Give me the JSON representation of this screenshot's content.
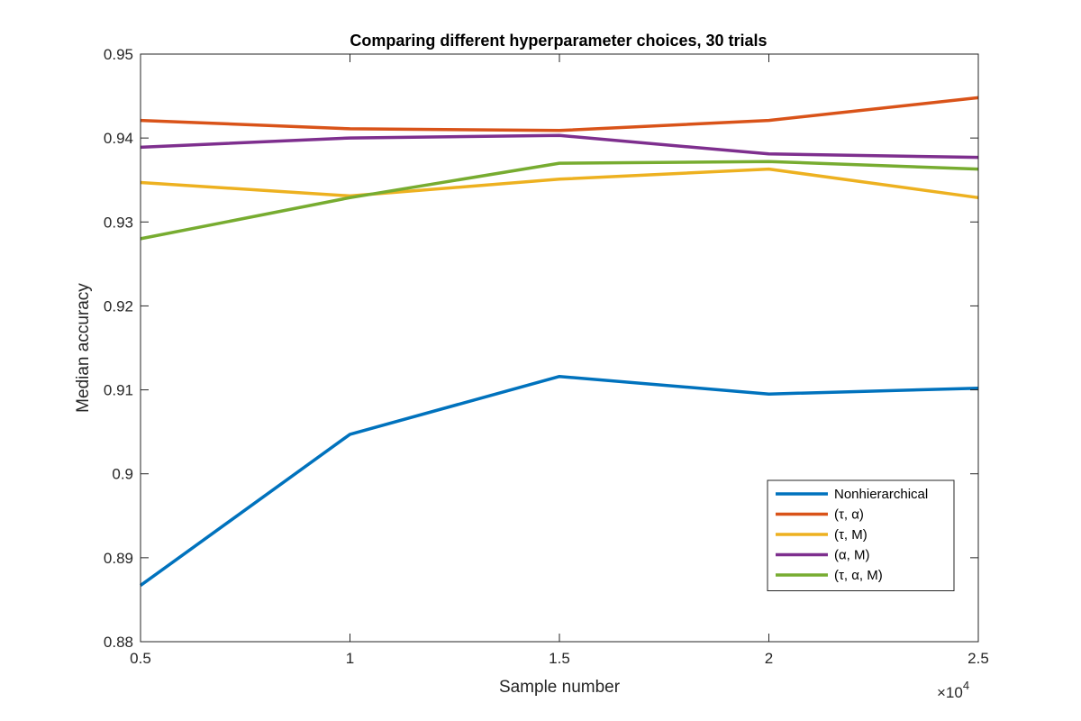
{
  "chart_data": {
    "type": "line",
    "title": "Comparing different hyperparameter choices, 30 trials",
    "xlabel": "Sample number",
    "ylabel": "Median accuracy",
    "x_exponent_label": "×10",
    "x_exponent_power": "4",
    "x": [
      0.5,
      1,
      1.5,
      2,
      2.5
    ],
    "xlim": [
      0.5,
      2.5
    ],
    "ylim": [
      0.88,
      0.95
    ],
    "xticks": [
      0.5,
      1,
      1.5,
      2,
      2.5
    ],
    "xtick_labels": [
      "0.5",
      "1",
      "1.5",
      "2",
      "2.5"
    ],
    "yticks": [
      0.88,
      0.89,
      0.9,
      0.91,
      0.92,
      0.93,
      0.94,
      0.95
    ],
    "ytick_labels": [
      "0.88",
      "0.89",
      "0.9",
      "0.91",
      "0.92",
      "0.93",
      "0.94",
      "0.95"
    ],
    "grid": false,
    "legend_position": "bottom-right",
    "series": [
      {
        "name": "Nonhierarchical",
        "color": "#0072BD",
        "values": [
          0.8867,
          0.9047,
          0.9116,
          0.9095,
          0.9102
        ]
      },
      {
        "name": "(τ, α)",
        "color": "#D95319",
        "values": [
          0.9421,
          0.9411,
          0.9409,
          0.9421,
          0.9448
        ]
      },
      {
        "name": "(τ, M)",
        "color": "#EDB120",
        "values": [
          0.9347,
          0.9331,
          0.9351,
          0.9363,
          0.9329
        ]
      },
      {
        "name": "(α, M)",
        "color": "#7E2F8E",
        "values": [
          0.9389,
          0.94,
          0.9403,
          0.9381,
          0.9377
        ]
      },
      {
        "name": "(τ, α, M)",
        "color": "#77AC30",
        "values": [
          0.928,
          0.9329,
          0.937,
          0.9372,
          0.9363
        ]
      }
    ]
  }
}
